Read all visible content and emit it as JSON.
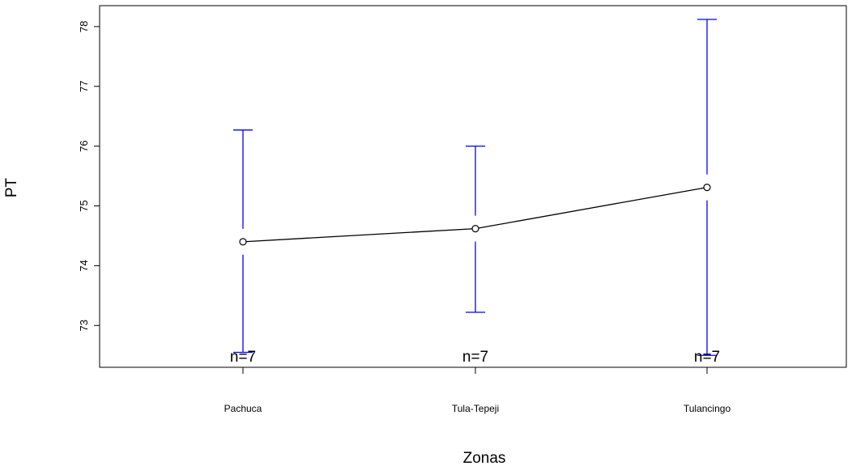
{
  "chart_data": {
    "type": "line",
    "xlabel": "Zonas",
    "ylabel": "PT",
    "categories": [
      "Pachuca",
      "Tula-Tepeji",
      "Tulancingo"
    ],
    "series": [
      {
        "values": [
          74.4,
          74.62,
          75.31
        ],
        "lower": [
          72.55,
          73.22,
          72.5
        ],
        "upper": [
          76.27,
          76.0,
          78.12
        ]
      }
    ],
    "n_labels": [
      "n=7",
      "n=7",
      "n=7"
    ],
    "ylim": [
      72.3,
      78.35
    ],
    "yticks": [
      73,
      74,
      75,
      76,
      77,
      78
    ],
    "ytick_labels": [
      "73",
      "74",
      "75",
      "76",
      "77",
      "78"
    ],
    "grid": false,
    "colors": {
      "line": "#000000",
      "error_bars": "#0000ff"
    }
  }
}
